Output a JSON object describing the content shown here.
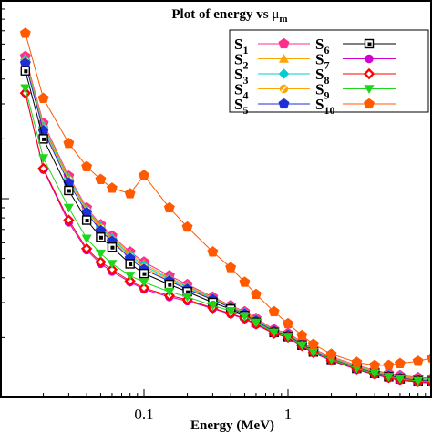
{
  "chart_data": {
    "type": "line",
    "title": "Plot of energy vs",
    "title_symbol": "μ",
    "title_subscript": "m",
    "xlabel": "Energy (MeV)",
    "ylabel": "",
    "x_scale": "log",
    "y_scale": "log",
    "xlim": [
      0.01,
      10
    ],
    "ylim": [
      0.01,
      1
    ],
    "x_ticks": [
      {
        "value": 0.1,
        "label": "0.1"
      },
      {
        "value": 1,
        "label": "1"
      }
    ],
    "grid": false,
    "legend_position": "top-right",
    "x": [
      0.015,
      0.02,
      0.03,
      0.04,
      0.05,
      0.06,
      0.08,
      0.1,
      0.15,
      0.2,
      0.3,
      0.4,
      0.5,
      0.6,
      0.8,
      1,
      1.25,
      1.5,
      2,
      3,
      4,
      5,
      6,
      8,
      10
    ],
    "series": [
      {
        "name": "S",
        "sub": "1",
        "color": "#ff2d8c",
        "marker": "pentagon",
        "values": [
          0.52,
          0.24,
          0.13,
          0.09,
          0.074,
          0.065,
          0.054,
          0.048,
          0.041,
          0.037,
          0.032,
          0.029,
          0.027,
          0.025,
          0.022,
          0.021,
          0.019,
          0.0175,
          0.016,
          0.0145,
          0.0137,
          0.0132,
          0.0129,
          0.0126,
          0.0125
        ]
      },
      {
        "name": "S",
        "sub": "2",
        "color": "#ffa500",
        "marker": "triangle",
        "values": [
          0.51,
          0.235,
          0.128,
          0.089,
          0.073,
          0.064,
          0.053,
          0.047,
          0.04,
          0.0365,
          0.0318,
          0.0288,
          0.0268,
          0.0248,
          0.0218,
          0.0208,
          0.0188,
          0.0174,
          0.0159,
          0.0144,
          0.0136,
          0.0131,
          0.0128,
          0.0125,
          0.0124
        ]
      },
      {
        "name": "S",
        "sub": "3",
        "color": "#00ced1",
        "marker": "diamond",
        "values": [
          0.5,
          0.23,
          0.126,
          0.088,
          0.072,
          0.063,
          0.052,
          0.046,
          0.0395,
          0.036,
          0.0315,
          0.0286,
          0.0266,
          0.0246,
          0.0217,
          0.0207,
          0.0187,
          0.0173,
          0.0158,
          0.0143,
          0.0135,
          0.013,
          0.0127,
          0.0124,
          0.0123
        ]
      },
      {
        "name": "S",
        "sub": "4",
        "color": "#ffa500",
        "marker": "circle-cross",
        "values": [
          0.49,
          0.225,
          0.124,
          0.087,
          0.071,
          0.062,
          0.051,
          0.045,
          0.039,
          0.0355,
          0.0312,
          0.0284,
          0.0264,
          0.0244,
          0.0216,
          0.0206,
          0.0186,
          0.0172,
          0.0157,
          0.0142,
          0.0134,
          0.0129,
          0.0126,
          0.0123,
          0.0122
        ]
      },
      {
        "name": "S",
        "sub": "5",
        "color": "#1f2fd6",
        "marker": "pentagon",
        "values": [
          0.48,
          0.22,
          0.12,
          0.085,
          0.069,
          0.061,
          0.05,
          0.044,
          0.0385,
          0.035,
          0.031,
          0.0282,
          0.0262,
          0.0242,
          0.0215,
          0.0205,
          0.0185,
          0.0171,
          0.0156,
          0.0141,
          0.0133,
          0.0128,
          0.0125,
          0.0122,
          0.0121
        ]
      },
      {
        "name": "S",
        "sub": "6",
        "color": "#000000",
        "marker": "square-dot",
        "values": [
          0.44,
          0.2,
          0.11,
          0.078,
          0.064,
          0.057,
          0.047,
          0.042,
          0.037,
          0.034,
          0.03,
          0.0278,
          0.0258,
          0.0238,
          0.0212,
          0.0202,
          0.0183,
          0.0169,
          0.0155,
          0.014,
          0.0132,
          0.0127,
          0.0124,
          0.0121,
          0.012
        ]
      },
      {
        "name": "S",
        "sub": "7",
        "color": "#d300d3",
        "marker": "circle",
        "values": [
          0.34,
          0.14,
          0.076,
          0.055,
          0.047,
          0.043,
          0.038,
          0.035,
          0.032,
          0.0305,
          0.028,
          0.0262,
          0.0248,
          0.0232,
          0.0209,
          0.02,
          0.0181,
          0.0167,
          0.0153,
          0.0138,
          0.013,
          0.0125,
          0.0122,
          0.0119,
          0.0118
        ]
      },
      {
        "name": "S",
        "sub": "8",
        "color": "#ff0000",
        "marker": "diamond-open",
        "values": [
          0.34,
          0.142,
          0.078,
          0.056,
          0.048,
          0.044,
          0.0385,
          0.0355,
          0.0325,
          0.031,
          0.0282,
          0.0264,
          0.025,
          0.0234,
          0.021,
          0.0201,
          0.0182,
          0.0168,
          0.0154,
          0.0139,
          0.0131,
          0.0126,
          0.0123,
          0.012,
          0.0119
        ]
      },
      {
        "name": "S",
        "sub": "9",
        "color": "#1fd61f",
        "marker": "triangle-down",
        "values": [
          0.36,
          0.16,
          0.09,
          0.063,
          0.053,
          0.047,
          0.041,
          0.038,
          0.034,
          0.032,
          0.029,
          0.0272,
          0.0256,
          0.0238,
          0.0212,
          0.0202,
          0.0183,
          0.0169,
          0.0155,
          0.014,
          0.0132,
          0.0127,
          0.0124,
          0.0121,
          0.012
        ]
      },
      {
        "name": "S",
        "sub": "10",
        "color": "#ff5a00",
        "marker": "pentagon",
        "values": [
          0.68,
          0.32,
          0.19,
          0.145,
          0.125,
          0.113,
          0.106,
          0.131,
          0.09,
          0.072,
          0.054,
          0.045,
          0.038,
          0.033,
          0.027,
          0.0235,
          0.0205,
          0.0185,
          0.0165,
          0.015,
          0.0145,
          0.0145,
          0.0148,
          0.0152,
          0.0158
        ]
      }
    ]
  }
}
